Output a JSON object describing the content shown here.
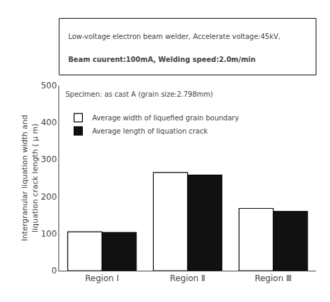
{
  "chart_data": {
    "type": "bar",
    "categories": [
      "Region I",
      "Region Ⅱ",
      "Region Ⅲ"
    ],
    "series": [
      {
        "name": "Average width of liquefied grain boundary",
        "color": "#ffffff",
        "values": [
          105,
          265,
          168
        ]
      },
      {
        "name": "Average length of liquation crack",
        "color": "#111111",
        "values": [
          103,
          258,
          160
        ]
      }
    ],
    "ylim": [
      0,
      500
    ],
    "yticks": [
      0,
      100,
      200,
      300,
      400,
      500
    ],
    "ylabel": "Intergranular liquation width and\nliquation crack length ( μ m)",
    "annotations": [
      "Specimen: as cast A (grain size:2.798mm)",
      "Low-voltage electron beam welder, Accelerate voltage:45kV,",
      "Beam cuurent:100mA, Welding speed:2.0m/min"
    ],
    "grid": false,
    "legend": "upper left"
  }
}
